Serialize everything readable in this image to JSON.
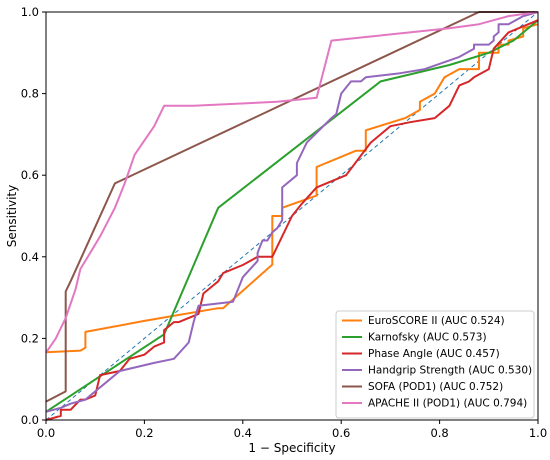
{
  "chart_data": {
    "type": "line",
    "xlabel": "1 − Specificity",
    "ylabel": "Sensitivity",
    "xlim": [
      0.0,
      1.0
    ],
    "ylim": [
      0.0,
      1.0
    ],
    "xticks": [
      "0.0",
      "0.2",
      "0.4",
      "0.6",
      "0.8",
      "1.0"
    ],
    "yticks": [
      "0.0",
      "0.2",
      "0.4",
      "0.6",
      "0.8",
      "1.0"
    ],
    "grid": false,
    "legend_position": "bottom-right",
    "reference_line": {
      "x": [
        0,
        1
      ],
      "y": [
        0,
        1
      ],
      "color": "#1f77b4",
      "style": "dashed"
    },
    "series": [
      {
        "name": "EuroSCORE II (AUC 0.524)",
        "color": "#ff7f0e",
        "x": [
          0.0,
          0.07,
          0.08,
          0.08,
          0.2,
          0.35,
          0.36,
          0.46,
          0.46,
          0.47,
          0.47,
          0.48,
          0.48,
          0.55,
          0.55,
          0.63,
          0.63,
          0.65,
          0.65,
          0.73,
          0.73,
          0.76,
          0.76,
          0.79,
          0.79,
          0.81,
          0.84,
          0.88,
          0.88,
          0.92,
          0.92,
          0.94,
          0.94,
          0.97,
          0.97,
          1.0
        ],
        "y": [
          0.166,
          0.17,
          0.177,
          0.216,
          0.243,
          0.274,
          0.274,
          0.381,
          0.5,
          0.5,
          0.5,
          0.5,
          0.52,
          0.55,
          0.62,
          0.66,
          0.66,
          0.66,
          0.71,
          0.74,
          0.74,
          0.76,
          0.78,
          0.8,
          0.8,
          0.84,
          0.86,
          0.86,
          0.9,
          0.9,
          0.92,
          0.92,
          0.93,
          0.94,
          0.96,
          0.97
        ]
      },
      {
        "name": "Karnofsky (AUC 0.573)",
        "color": "#2ca02c",
        "x": [
          0.0,
          0.24,
          0.35,
          0.68,
          0.82,
          0.9,
          0.95,
          1.0
        ],
        "y": [
          0.02,
          0.21,
          0.52,
          0.83,
          0.87,
          0.9,
          0.93,
          0.98
        ]
      },
      {
        "name": "Phase Angle (AUC 0.457)",
        "color": "#d62728",
        "x": [
          0.0,
          0.03,
          0.03,
          0.05,
          0.07,
          0.08,
          0.1,
          0.11,
          0.15,
          0.17,
          0.2,
          0.22,
          0.24,
          0.24,
          0.26,
          0.27,
          0.31,
          0.32,
          0.33,
          0.34,
          0.35,
          0.36,
          0.4,
          0.43,
          0.46,
          0.5,
          0.52,
          0.55,
          0.61,
          0.66,
          0.68,
          0.7,
          0.74,
          0.79,
          0.82,
          0.84,
          0.86,
          0.87,
          0.9,
          0.91,
          0.94,
          1.0
        ],
        "y": [
          0.0,
          0.01,
          0.025,
          0.025,
          0.05,
          0.05,
          0.06,
          0.11,
          0.12,
          0.15,
          0.16,
          0.18,
          0.19,
          0.22,
          0.24,
          0.24,
          0.26,
          0.31,
          0.32,
          0.33,
          0.34,
          0.36,
          0.38,
          0.4,
          0.4,
          0.5,
          0.53,
          0.57,
          0.6,
          0.68,
          0.7,
          0.72,
          0.73,
          0.74,
          0.77,
          0.82,
          0.83,
          0.84,
          0.86,
          0.91,
          0.95,
          0.98
        ]
      },
      {
        "name": "Handgrip Strength (AUC 0.530)",
        "color": "#9467bd",
        "x": [
          0.0,
          0.03,
          0.05,
          0.08,
          0.1,
          0.12,
          0.13,
          0.15,
          0.22,
          0.26,
          0.29,
          0.3,
          0.31,
          0.38,
          0.4,
          0.43,
          0.43,
          0.44,
          0.45,
          0.46,
          0.47,
          0.48,
          0.48,
          0.51,
          0.51,
          0.53,
          0.58,
          0.59,
          0.6,
          0.62,
          0.64,
          0.65,
          0.72,
          0.77,
          0.84,
          0.87,
          0.87,
          0.9,
          0.91,
          0.91,
          0.92,
          0.92,
          0.94,
          0.97,
          1.0
        ],
        "y": [
          0.02,
          0.03,
          0.04,
          0.05,
          0.07,
          0.09,
          0.1,
          0.12,
          0.14,
          0.15,
          0.19,
          0.24,
          0.28,
          0.29,
          0.35,
          0.39,
          0.41,
          0.44,
          0.44,
          0.46,
          0.47,
          0.49,
          0.57,
          0.6,
          0.63,
          0.68,
          0.74,
          0.75,
          0.8,
          0.83,
          0.83,
          0.84,
          0.85,
          0.86,
          0.89,
          0.91,
          0.92,
          0.92,
          0.93,
          0.94,
          0.95,
          0.97,
          0.97,
          0.99,
          1.0
        ]
      },
      {
        "name": "SOFA (POD1) (AUC 0.752)",
        "color": "#8c564b",
        "x": [
          0.0,
          0.04,
          0.04,
          0.05,
          0.14,
          0.88,
          0.92,
          0.94,
          1.0
        ],
        "y": [
          0.045,
          0.07,
          0.315,
          0.34,
          0.58,
          1.0,
          1.0,
          1.0,
          1.0
        ]
      },
      {
        "name": "APACHE II (POD1) (AUC 0.794)",
        "color": "#e377c2",
        "x": [
          0.0,
          0.02,
          0.04,
          0.06,
          0.07,
          0.09,
          0.11,
          0.14,
          0.15,
          0.16,
          0.18,
          0.22,
          0.24,
          0.3,
          0.47,
          0.55,
          0.58,
          0.66,
          0.82,
          0.88,
          0.91,
          0.94,
          1.0
        ],
        "y": [
          0.165,
          0.2,
          0.25,
          0.32,
          0.37,
          0.41,
          0.45,
          0.52,
          0.55,
          0.58,
          0.65,
          0.72,
          0.77,
          0.77,
          0.78,
          0.79,
          0.93,
          0.94,
          0.96,
          0.97,
          0.98,
          0.99,
          1.0
        ]
      }
    ]
  }
}
